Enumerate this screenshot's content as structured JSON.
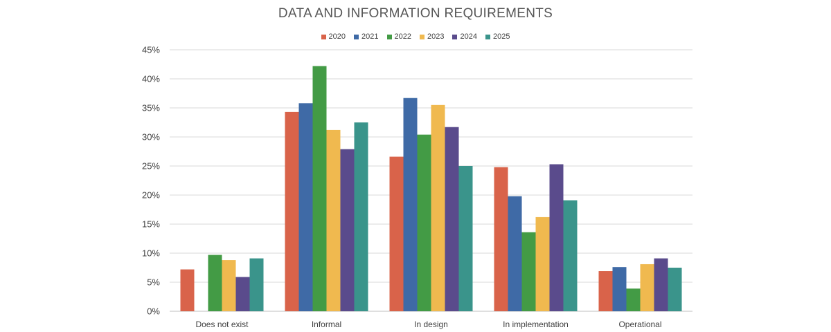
{
  "chart_data": {
    "type": "bar",
    "title": "DATA AND INFORMATION REQUIREMENTS",
    "categories": [
      "Does not exist",
      "Informal",
      "In design",
      "In implementation",
      "Operational"
    ],
    "series": [
      {
        "name": "2020",
        "color": "#d9634a",
        "values": [
          7.2,
          34.3,
          26.6,
          24.8,
          6.9
        ]
      },
      {
        "name": "2021",
        "color": "#3f6aa6",
        "values": [
          0,
          35.8,
          36.7,
          19.8,
          7.6
        ]
      },
      {
        "name": "2022",
        "color": "#439b45",
        "values": [
          9.7,
          42.2,
          30.4,
          13.6,
          3.9
        ]
      },
      {
        "name": "2023",
        "color": "#f0b94f",
        "values": [
          8.8,
          31.2,
          35.5,
          16.2,
          8.1
        ]
      },
      {
        "name": "2024",
        "color": "#5a4b8c",
        "values": [
          5.9,
          27.9,
          31.7,
          25.3,
          9.1
        ]
      },
      {
        "name": "2025",
        "color": "#3a948b",
        "values": [
          9.1,
          32.5,
          25.0,
          19.1,
          7.5
        ]
      }
    ],
    "y_ticks": [
      "0%",
      "5%",
      "10%",
      "15%",
      "20%",
      "25%",
      "30%",
      "35%",
      "40%",
      "45%"
    ],
    "ylim": [
      0,
      45
    ],
    "grid": true,
    "legend_position": "top-center"
  }
}
